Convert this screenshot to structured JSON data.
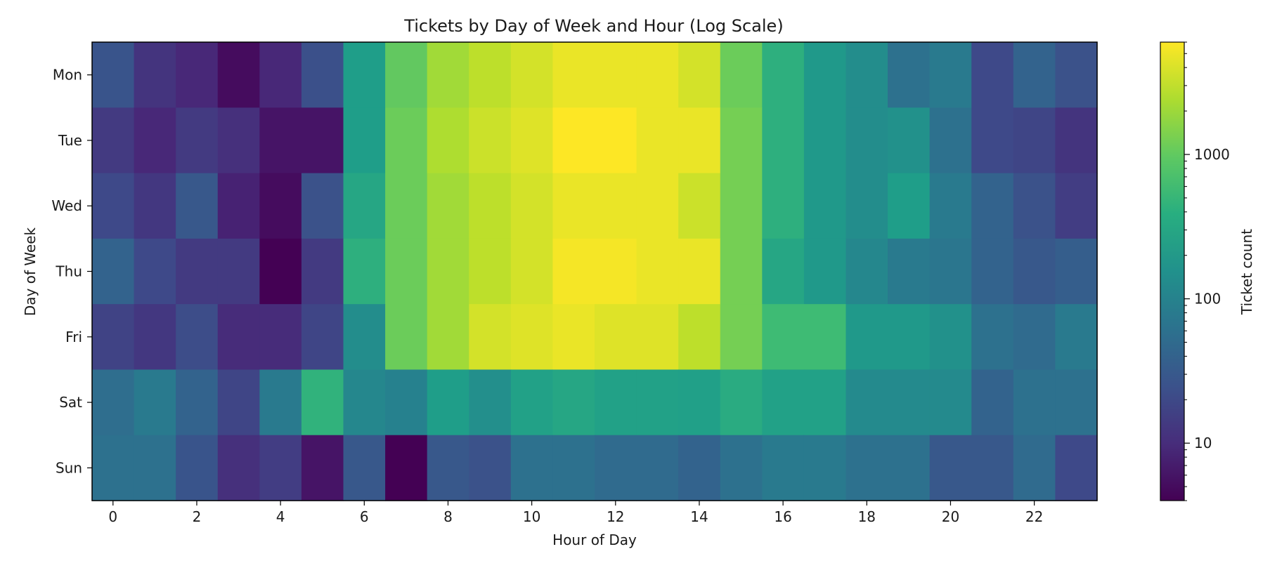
{
  "chart_data": {
    "type": "heatmap",
    "title": "Tickets by Day of Week and Hour (Log Scale)",
    "xlabel": "Hour of Day",
    "ylabel": "Day of Week",
    "colorbar_label": "Ticket count",
    "scale": "log",
    "colormap": "viridis",
    "vmin": 4,
    "vmax": 6000,
    "x_categories": [
      0,
      1,
      2,
      3,
      4,
      5,
      6,
      7,
      8,
      9,
      10,
      11,
      12,
      13,
      14,
      15,
      16,
      17,
      18,
      19,
      20,
      21,
      22,
      23
    ],
    "x_tick_labels": [
      "0",
      "2",
      "4",
      "6",
      "8",
      "10",
      "12",
      "14",
      "16",
      "18",
      "20",
      "22"
    ],
    "y_categories": [
      "Mon",
      "Tue",
      "Wed",
      "Thu",
      "Fri",
      "Sat",
      "Sun"
    ],
    "colorbar_ticks": [
      {
        "value": 10,
        "label": "10"
      },
      {
        "value": 100,
        "label": "100"
      },
      {
        "value": 1000,
        "label": "1000"
      }
    ],
    "values": [
      [
        27,
        12,
        9,
        5,
        9,
        24,
        230,
        1000,
        2150,
        2950,
        3760,
        4850,
        4850,
        4850,
        3760,
        1150,
        400,
        200,
        140,
        60,
        80,
        20,
        40,
        25
      ],
      [
        14,
        9,
        14,
        11,
        6,
        6,
        230,
        1150,
        2480,
        3430,
        4270,
        6000,
        6000,
        4850,
        4850,
        1300,
        400,
        200,
        140,
        160,
        60,
        20,
        18,
        12
      ],
      [
        20,
        13,
        30,
        8,
        5,
        25,
        300,
        1150,
        2150,
        2950,
        3760,
        4850,
        4850,
        4850,
        3430,
        1300,
        400,
        200,
        140,
        230,
        80,
        40,
        25,
        15
      ],
      [
        40,
        20,
        14,
        14,
        4,
        14,
        400,
        1150,
        2150,
        2950,
        3760,
        5500,
        5500,
        4850,
        4850,
        1300,
        300,
        200,
        120,
        80,
        70,
        40,
        30,
        35
      ],
      [
        17,
        13,
        22,
        10,
        10,
        18,
        140,
        1150,
        2150,
        3760,
        4270,
        4850,
        4270,
        4270,
        2950,
        1300,
        600,
        600,
        200,
        200,
        160,
        60,
        50,
        80
      ],
      [
        55,
        80,
        40,
        18,
        80,
        450,
        120,
        100,
        230,
        150,
        260,
        300,
        260,
        260,
        250,
        350,
        260,
        260,
        130,
        130,
        130,
        40,
        60,
        60
      ],
      [
        60,
        60,
        27,
        11,
        15,
        6,
        30,
        4,
        30,
        25,
        60,
        60,
        50,
        50,
        40,
        60,
        80,
        80,
        60,
        60,
        30,
        30,
        50,
        20
      ]
    ]
  }
}
